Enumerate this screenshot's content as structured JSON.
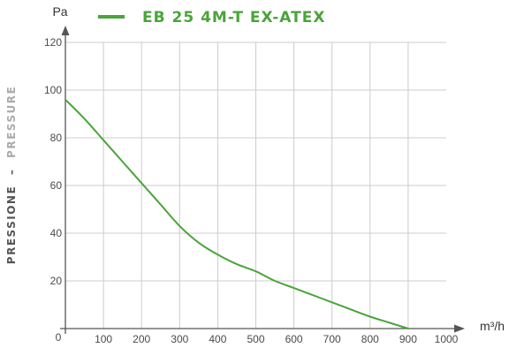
{
  "chart_data": {
    "type": "line",
    "x_unit": "m³/h",
    "y_unit": "Pa",
    "ylabel_primary": "PRESSIONE",
    "ylabel_separator": "–",
    "ylabel_secondary": "PRESSURE",
    "origin_label": "0",
    "xlim": [
      0,
      1000
    ],
    "ylim": [
      0,
      120
    ],
    "x_ticks": [
      "100",
      "200",
      "300",
      "400",
      "500",
      "600",
      "700",
      "800",
      "900",
      "1000"
    ],
    "y_ticks": [
      "20",
      "40",
      "60",
      "80",
      "100",
      "120"
    ],
    "x_tick_values": [
      100,
      200,
      300,
      400,
      500,
      600,
      700,
      800,
      900,
      1000
    ],
    "y_tick_values": [
      20,
      40,
      60,
      80,
      100,
      120
    ],
    "grid": true,
    "legend_position": "top",
    "series": [
      {
        "name": "EB 25 4M-T EX-ATEX",
        "color": "#4aa43a",
        "x": [
          0,
          50,
          100,
          150,
          200,
          250,
          300,
          350,
          400,
          450,
          500,
          550,
          600,
          650,
          700,
          750,
          800,
          850,
          900
        ],
        "y": [
          96,
          88,
          79,
          70,
          61,
          52,
          43,
          36,
          31,
          27,
          24,
          20,
          17,
          14,
          11,
          8,
          5,
          2.5,
          0
        ]
      }
    ]
  },
  "colors": {
    "axis": "#555555",
    "grid": "#cccccc",
    "ylabel_primary": "#555555",
    "ylabel_secondary": "#aaaaaa"
  }
}
